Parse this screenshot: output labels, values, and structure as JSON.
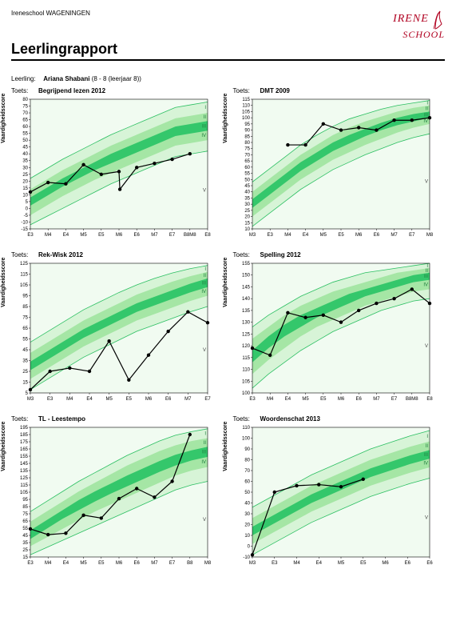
{
  "header": {
    "school_name": "Ireneschool WAGENINGEN",
    "report_title": "Leerlingrapport",
    "logo_line1": "IRENE",
    "logo_line2": "SCHOOL",
    "logo_color": "#b00020"
  },
  "student": {
    "label": "Leerling:",
    "name": "Ariana Shabani",
    "detail": "(8 - 8 (leerjaar 8))"
  },
  "axis_common": {
    "ylabel": "Vaardigheidsscore",
    "x_labels": [
      "E3",
      "M4",
      "E4",
      "M5",
      "E5",
      "M6",
      "E6",
      "M7",
      "E7",
      "B8M8",
      "E8"
    ],
    "band_labels": [
      "I",
      "II",
      "III",
      "IV",
      "V"
    ],
    "tick_font": 6,
    "grid_color": "#cccccc",
    "plot_bg": "#f1fbf1",
    "band_colors_outer": "#d7f4d7",
    "band_colors_mid": "#a5e6a5",
    "band_colors_inner": "#34c76b",
    "band_outline": "#2bbf62",
    "line_color": "#000000",
    "marker_size": 2.2
  },
  "panels": [
    {
      "label": "Toets:",
      "title": "Begrijpend lezen 2012",
      "ymin": -15,
      "ymax": 80,
      "ystep": 5,
      "x_labels": [
        "E3",
        "M4",
        "E4",
        "M5",
        "E5",
        "M6",
        "E6",
        "M7",
        "E7",
        "B8M8",
        "E8"
      ],
      "bands": {
        "outer_lo": [
          -12,
          -6,
          0,
          6,
          12,
          18,
          23,
          28,
          33,
          38,
          40,
          42
        ],
        "mid_lo": [
          -5,
          2,
          9,
          15,
          21,
          26,
          31,
          36,
          41,
          46,
          48,
          50
        ],
        "inner_lo": [
          2,
          9,
          16,
          22,
          28,
          33,
          38,
          43,
          48,
          53,
          55,
          57
        ],
        "inner_hi": [
          8,
          15,
          22,
          28,
          34,
          40,
          45,
          50,
          55,
          60,
          62,
          64
        ],
        "mid_hi": [
          14,
          21,
          28,
          34,
          40,
          46,
          51,
          56,
          61,
          66,
          68,
          70
        ],
        "outer_hi": [
          22,
          29,
          36,
          42,
          48,
          54,
          59,
          64,
          69,
          74,
          76,
          78
        ]
      },
      "data_x": [
        0,
        1,
        2,
        3,
        4,
        5,
        5.05,
        6,
        7,
        8,
        9
      ],
      "data_y": [
        12,
        19,
        18,
        32,
        25,
        27,
        14,
        30,
        33,
        36,
        40
      ]
    },
    {
      "label": "Toets:",
      "title": "DMT 2009",
      "ymin": 10,
      "ymax": 115,
      "ystep": 5,
      "x_labels": [
        "M3",
        "E3",
        "M4",
        "E4",
        "M5",
        "E5",
        "M6",
        "E6",
        "M7",
        "E7",
        "M8"
      ],
      "bands": {
        "outer_lo": [
          12,
          22,
          32,
          42,
          50,
          58,
          64,
          70,
          75,
          80,
          84,
          87
        ],
        "mid_lo": [
          20,
          30,
          40,
          50,
          58,
          66,
          72,
          78,
          83,
          88,
          92,
          95
        ],
        "inner_lo": [
          27,
          37,
          47,
          57,
          65,
          73,
          79,
          85,
          90,
          94,
          97,
          100
        ],
        "inner_hi": [
          34,
          44,
          54,
          64,
          72,
          80,
          86,
          91,
          96,
          100,
          103,
          105
        ],
        "mid_hi": [
          40,
          50,
          60,
          70,
          78,
          86,
          92,
          97,
          101,
          105,
          108,
          110
        ],
        "outer_hi": [
          48,
          58,
          68,
          78,
          86,
          93,
          99,
          103,
          107,
          110,
          112,
          114
        ]
      },
      "data_x": [
        2,
        3,
        4,
        5,
        6,
        7,
        8,
        9,
        10
      ],
      "data_y": [
        78,
        78,
        95,
        90,
        92,
        90,
        98,
        98,
        100
      ]
    },
    {
      "label": "Toets:",
      "title": "Rek-Wisk 2012",
      "ymin": 5,
      "ymax": 125,
      "ystep": 10,
      "x_labels": [
        "M3",
        "E3",
        "M4",
        "E4",
        "M5",
        "E5",
        "M6",
        "E6",
        "M7",
        "E7"
      ],
      "bands": {
        "outer_lo": [
          8,
          18,
          28,
          38,
          46,
          54,
          62,
          68,
          74,
          80,
          85
        ],
        "mid_lo": [
          18,
          28,
          38,
          48,
          56,
          64,
          72,
          78,
          84,
          90,
          95
        ],
        "inner_lo": [
          26,
          36,
          46,
          56,
          64,
          72,
          80,
          86,
          92,
          98,
          103
        ],
        "inner_hi": [
          34,
          44,
          54,
          64,
          72,
          80,
          88,
          94,
          100,
          106,
          111
        ],
        "mid_hi": [
          42,
          52,
          62,
          72,
          80,
          88,
          96,
          102,
          108,
          113,
          117
        ],
        "outer_hi": [
          52,
          62,
          72,
          82,
          90,
          98,
          105,
          111,
          116,
          120,
          123
        ]
      },
      "data_x": [
        0,
        1,
        2,
        3,
        4,
        5,
        6,
        7,
        8,
        9
      ],
      "data_y": [
        8,
        25,
        28,
        25,
        53,
        17,
        40,
        62,
        80,
        70
      ]
    },
    {
      "label": "Toets:",
      "title": "Spelling 2012",
      "ymin": 100,
      "ymax": 155,
      "ystep": 5,
      "x_labels": [
        "E3",
        "M4",
        "E4",
        "M5",
        "E5",
        "M6",
        "E6",
        "M7",
        "E7",
        "B8M8",
        "E8"
      ],
      "bands": {
        "outer_lo": [
          102,
          108,
          113,
          118,
          122,
          126,
          129,
          132,
          135,
          137,
          139,
          140
        ],
        "mid_lo": [
          108,
          114,
          119,
          124,
          128,
          131,
          134,
          137,
          139,
          141,
          143,
          144
        ],
        "inner_lo": [
          113,
          119,
          124,
          128,
          132,
          135,
          138,
          141,
          143,
          145,
          147,
          148
        ],
        "inner_hi": [
          118,
          124,
          129,
          133,
          136,
          139,
          142,
          144,
          146,
          148,
          150,
          151
        ],
        "mid_hi": [
          123,
          128,
          133,
          137,
          140,
          143,
          145,
          147,
          149,
          151,
          152,
          153
        ],
        "outer_hi": [
          128,
          133,
          137,
          141,
          144,
          147,
          149,
          151,
          152,
          153,
          154,
          155
        ]
      },
      "data_x": [
        0,
        1,
        2,
        3,
        4,
        5,
        6,
        7,
        8,
        9,
        10
      ],
      "data_y": [
        119,
        116,
        134,
        132,
        133,
        130,
        135,
        138,
        140,
        144,
        138
      ]
    },
    {
      "label": "Toets:",
      "title": "TL - Leestempo",
      "ymin": 15,
      "ymax": 195,
      "ystep": 10,
      "x_labels": [
        "E3",
        "M4",
        "E4",
        "M5",
        "E5",
        "M6",
        "E6",
        "M7",
        "E7",
        "B8",
        "M8"
      ],
      "bands": {
        "outer_lo": [
          18,
          28,
          38,
          48,
          58,
          68,
          78,
          88,
          98,
          108,
          115,
          120
        ],
        "mid_lo": [
          30,
          42,
          54,
          66,
          78,
          88,
          98,
          108,
          118,
          128,
          135,
          140
        ],
        "inner_lo": [
          40,
          54,
          68,
          80,
          92,
          103,
          113,
          123,
          133,
          142,
          149,
          154
        ],
        "inner_hi": [
          52,
          66,
          80,
          94,
          106,
          117,
          128,
          138,
          148,
          157,
          163,
          168
        ],
        "mid_hi": [
          64,
          78,
          92,
          106,
          118,
          130,
          142,
          152,
          162,
          170,
          176,
          180
        ],
        "outer_hi": [
          78,
          92,
          106,
          120,
          132,
          144,
          156,
          166,
          176,
          184,
          189,
          193
        ]
      },
      "data_x": [
        0,
        1,
        2,
        3,
        4,
        5,
        6,
        7,
        8,
        9
      ],
      "data_y": [
        54,
        46,
        48,
        73,
        69,
        96,
        110,
        98,
        120,
        185
      ]
    },
    {
      "label": "Toets:",
      "title": "Woordenschat 2013",
      "ymin": -10,
      "ymax": 110,
      "ystep": 10,
      "x_labels": [
        "M3",
        "E3",
        "M4",
        "E4",
        "M5",
        "E5",
        "M6",
        "E6",
        "E6"
      ],
      "bands": {
        "outer_lo": [
          -8,
          2,
          12,
          22,
          30,
          38,
          46,
          52,
          58,
          63
        ],
        "mid_lo": [
          2,
          12,
          22,
          32,
          40,
          48,
          56,
          62,
          68,
          73
        ],
        "inner_lo": [
          10,
          20,
          30,
          40,
          48,
          56,
          64,
          70,
          76,
          81
        ],
        "inner_hi": [
          18,
          28,
          38,
          48,
          56,
          64,
          72,
          78,
          84,
          89
        ],
        "mid_hi": [
          26,
          36,
          46,
          56,
          64,
          72,
          80,
          86,
          92,
          97
        ],
        "outer_hi": [
          36,
          46,
          56,
          66,
          74,
          82,
          90,
          96,
          102,
          107
        ]
      },
      "data_x": [
        0,
        1,
        2,
        3,
        4,
        5
      ],
      "data_y": [
        -8,
        50,
        56,
        57,
        55,
        62
      ]
    }
  ]
}
